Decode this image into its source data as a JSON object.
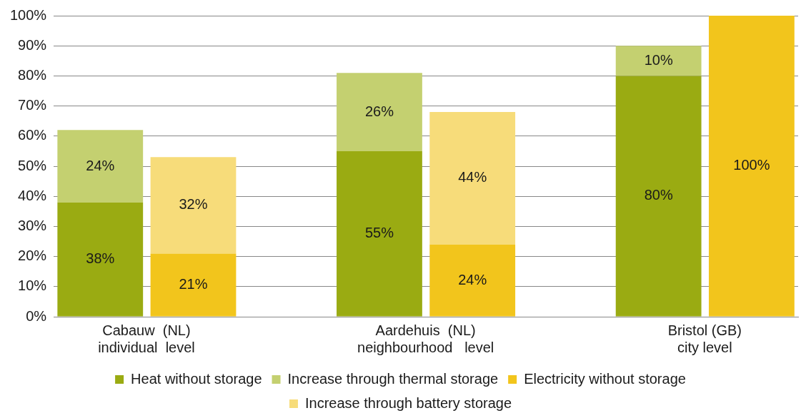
{
  "chart_data": {
    "type": "bar",
    "stacked": true,
    "categories": [
      "Cabauw  (NL)\nindividual  level",
      null,
      null,
      "Aardehuis  (NL)\nneighbourhood   level",
      null,
      null,
      "Bristol (GB)\ncity level",
      null
    ],
    "series": [
      {
        "name": "Heat without storage",
        "color": "#9aab12",
        "values": [
          38,
          null,
          null,
          55,
          null,
          null,
          80,
          null
        ],
        "value_labels": [
          "38%",
          null,
          null,
          "55%",
          null,
          null,
          "80%",
          null
        ]
      },
      {
        "name": "Increase through thermal storage",
        "color": "#c4d070",
        "values": [
          24,
          null,
          null,
          26,
          null,
          null,
          10,
          null
        ],
        "value_labels": [
          "24%",
          null,
          null,
          "26%",
          null,
          null,
          "10%",
          null
        ]
      },
      {
        "name": "Electricity without storage",
        "color": "#f2c51c",
        "values": [
          null,
          21,
          null,
          null,
          24,
          null,
          null,
          100
        ],
        "value_labels": [
          null,
          "21%",
          null,
          null,
          "24%",
          null,
          null,
          "100%"
        ]
      },
      {
        "name": "Increase through battery storage",
        "color": "#f7dc7a",
        "values": [
          null,
          32,
          null,
          null,
          44,
          null,
          null,
          null
        ],
        "value_labels": [
          null,
          "32%",
          null,
          null,
          "44%",
          null,
          null,
          null
        ]
      }
    ],
    "ylim": [
      0,
      100
    ],
    "yticks": [
      {
        "value": 0,
        "label": "0%"
      },
      {
        "value": 10,
        "label": "10%"
      },
      {
        "value": 20,
        "label": "20%"
      },
      {
        "value": 30,
        "label": "30%"
      },
      {
        "value": 40,
        "label": "40%"
      },
      {
        "value": 50,
        "label": "50%"
      },
      {
        "value": 60,
        "label": "60%"
      },
      {
        "value": 70,
        "label": "70%"
      },
      {
        "value": 80,
        "label": "80%"
      },
      {
        "value": 90,
        "label": "90%"
      },
      {
        "value": 100,
        "label": "100%"
      }
    ],
    "grid": "y",
    "legend": "bottom"
  }
}
